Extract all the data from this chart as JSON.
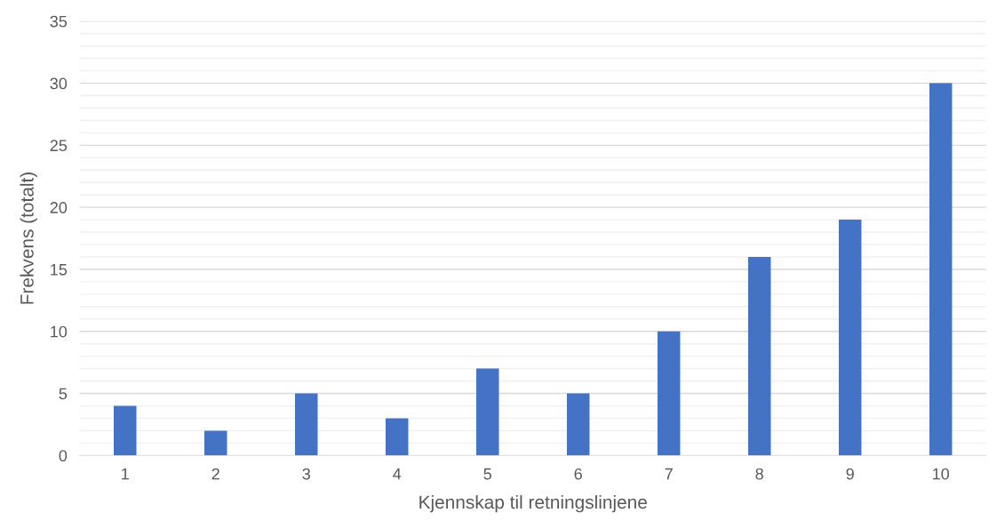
{
  "chart_data": {
    "type": "bar",
    "xlabel": "Kjennskap til retningslinjene",
    "ylabel": "Frekvens (totalt)",
    "categories": [
      "1",
      "2",
      "3",
      "4",
      "5",
      "6",
      "7",
      "8",
      "9",
      "10"
    ],
    "values": [
      4,
      2,
      5,
      3,
      7,
      5,
      10,
      16,
      19,
      30
    ],
    "color": "#4472c4",
    "ylim": [
      0,
      35
    ],
    "yticks": [
      0,
      {
        "value": 1,
        "label": null
      },
      {
        "value": 2,
        "label": null
      },
      {
        "value": 3,
        "label": null
      },
      {
        "value": 4,
        "label": null
      },
      5,
      {
        "value": 6,
        "label": null
      },
      {
        "value": 7,
        "label": null
      },
      {
        "value": 8,
        "label": null
      },
      {
        "value": 9,
        "label": null
      },
      10,
      {
        "value": 11,
        "label": null
      },
      {
        "value": 12,
        "label": null
      },
      {
        "value": 13,
        "label": null
      },
      {
        "value": 14,
        "label": null
      },
      15,
      {
        "value": 16,
        "label": null
      },
      {
        "value": 17,
        "label": null
      },
      {
        "value": 18,
        "label": null
      },
      {
        "value": 19,
        "label": null
      },
      20,
      {
        "value": 21,
        "label": null
      },
      {
        "value": 22,
        "label": null
      },
      {
        "value": 23,
        "label": null
      },
      {
        "value": 24,
        "label": null
      },
      25,
      {
        "value": 26,
        "label": null
      },
      {
        "value": 27,
        "label": null
      },
      {
        "value": 28,
        "label": null
      },
      {
        "value": 29,
        "label": null
      },
      30,
      {
        "value": 31,
        "label": null
      },
      {
        "value": 32,
        "label": null
      },
      {
        "value": 33,
        "label": null
      },
      {
        "value": 34,
        "label": null
      },
      35
    ],
    "grid": "y",
    "legend": false
  }
}
